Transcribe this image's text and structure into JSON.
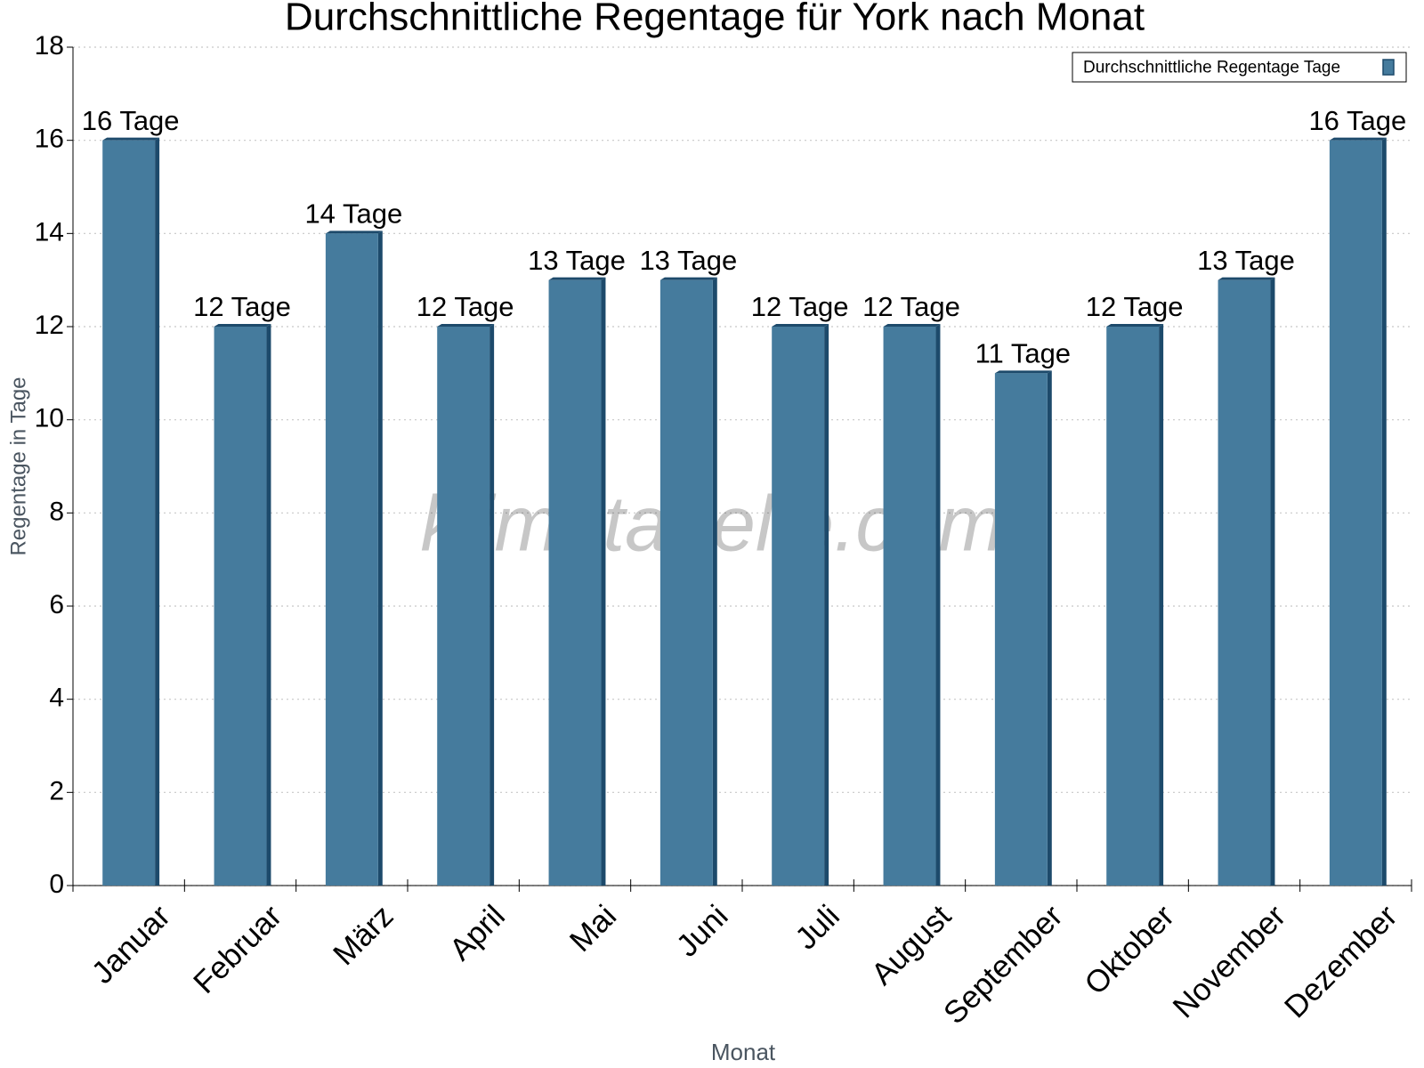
{
  "chart_data": {
    "type": "bar",
    "title": "Durchschnittliche Regentage für York nach Monat",
    "x_label": "Monat",
    "y_label": "Regentage in Tage",
    "watermark": "klimatabelle.com",
    "categories": [
      "Januar",
      "Februar",
      "März",
      "April",
      "Mai",
      "Juni",
      "Juli",
      "August",
      "September",
      "Oktober",
      "November",
      "Dezember"
    ],
    "series": [
      {
        "name": "Durchschnittliche Regentage Tage",
        "color": "#457b9d",
        "values": [
          16,
          12,
          14,
          12,
          13,
          13,
          12,
          12,
          11,
          12,
          13,
          16
        ],
        "value_labels": [
          "16 Tage",
          "12 Tage",
          "14 Tage",
          "12 Tage",
          "13 Tage",
          "13 Tage",
          "12 Tage",
          "12 Tage",
          "11 Tage",
          "12 Tage",
          "13 Tage",
          "16 Tage"
        ]
      }
    ],
    "ylim": [
      0,
      18
    ],
    "yticks": [
      0,
      2,
      4,
      6,
      8,
      10,
      12,
      14,
      16,
      18
    ],
    "grid": true,
    "legend": "upper right"
  }
}
